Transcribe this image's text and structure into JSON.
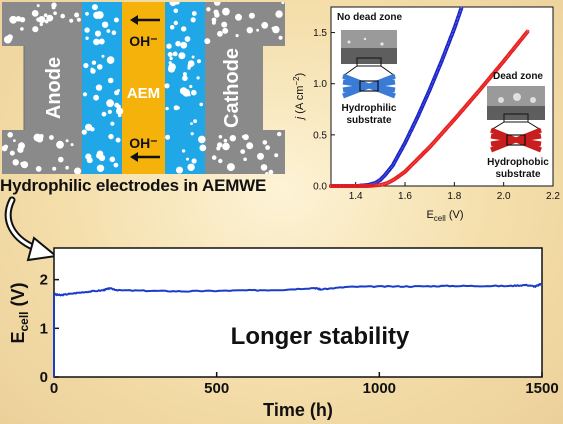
{
  "schematic": {
    "labels": {
      "anode": "Anode",
      "cathode": "Cathode",
      "membrane": "AEM",
      "ion_top": "OH⁻",
      "ion_bottom": "OH⁻"
    },
    "colors": {
      "electrode": "#8a8a8a",
      "electrolyte": "#1fa7e8",
      "membrane": "#f5b20a"
    },
    "caption": "Hydrophilic electrodes in AEMWE",
    "arrow_icon": "curved-arrow-icon"
  },
  "chart_data": [
    {
      "type": "scatter",
      "xlabel_main": "E",
      "xlabel_sub": "cell",
      "xlabel_unit": " (V)",
      "ylabel_sym": "j",
      "ylabel_unit": " (A cm",
      "ylabel_exp": "−2",
      "ylabel_close": ")",
      "xlim": [
        1.3,
        2.2
      ],
      "ylim": [
        0,
        1.75
      ],
      "xticks": [
        "1.4",
        "1.6",
        "1.8",
        "2.0",
        "2.2"
      ],
      "yticks": [
        "0.0",
        "0.5",
        "1.0",
        "1.5"
      ],
      "series": [
        {
          "id": "hydrophilic",
          "color": "#1a24c8",
          "x": [
            1.3,
            1.4,
            1.45,
            1.48,
            1.5,
            1.52,
            1.55,
            1.6,
            1.65,
            1.7,
            1.75,
            1.8,
            1.83
          ],
          "y": [
            0.0,
            0.0,
            0.01,
            0.03,
            0.06,
            0.11,
            0.2,
            0.42,
            0.67,
            0.94,
            1.23,
            1.54,
            1.75
          ]
        },
        {
          "id": "hydrophobic",
          "color": "#e81f1f",
          "x": [
            1.3,
            1.4,
            1.45,
            1.5,
            1.53,
            1.56,
            1.6,
            1.7,
            1.8,
            1.9,
            2.0,
            2.1
          ],
          "y": [
            0.0,
            0.0,
            0.0,
            0.01,
            0.03,
            0.07,
            0.14,
            0.38,
            0.65,
            0.93,
            1.22,
            1.52
          ]
        }
      ],
      "annotations": {
        "no_dead_zone": "No dead zone",
        "dead_zone": "Dead zone",
        "hydrophilic_line1": "Hydrophilic",
        "hydrophilic_line2": "substrate",
        "hydrophobic_line1": "Hydrophobic",
        "hydrophobic_line2": "substrate"
      }
    },
    {
      "type": "line",
      "xlabel": "Time (h)",
      "ylabel_main": "E",
      "ylabel_sub": "cell",
      "ylabel_unit": " (V)",
      "xlim": [
        0,
        1500
      ],
      "ylim": [
        0,
        2.65
      ],
      "xticks": [
        "0",
        "500",
        "1000",
        "1500"
      ],
      "yticks": [
        "0",
        "1",
        "2"
      ],
      "title": "Longer stability",
      "color": "#1a3cc8",
      "x": [
        0,
        20,
        50,
        100,
        150,
        170,
        200,
        300,
        400,
        500,
        600,
        700,
        800,
        820,
        900,
        1000,
        1100,
        1200,
        1300,
        1400,
        1450,
        1480,
        1500
      ],
      "y": [
        1.7,
        1.68,
        1.71,
        1.75,
        1.78,
        1.82,
        1.78,
        1.77,
        1.76,
        1.77,
        1.78,
        1.79,
        1.83,
        1.8,
        1.85,
        1.86,
        1.86,
        1.87,
        1.87,
        1.87,
        1.89,
        1.86,
        1.92
      ]
    }
  ]
}
